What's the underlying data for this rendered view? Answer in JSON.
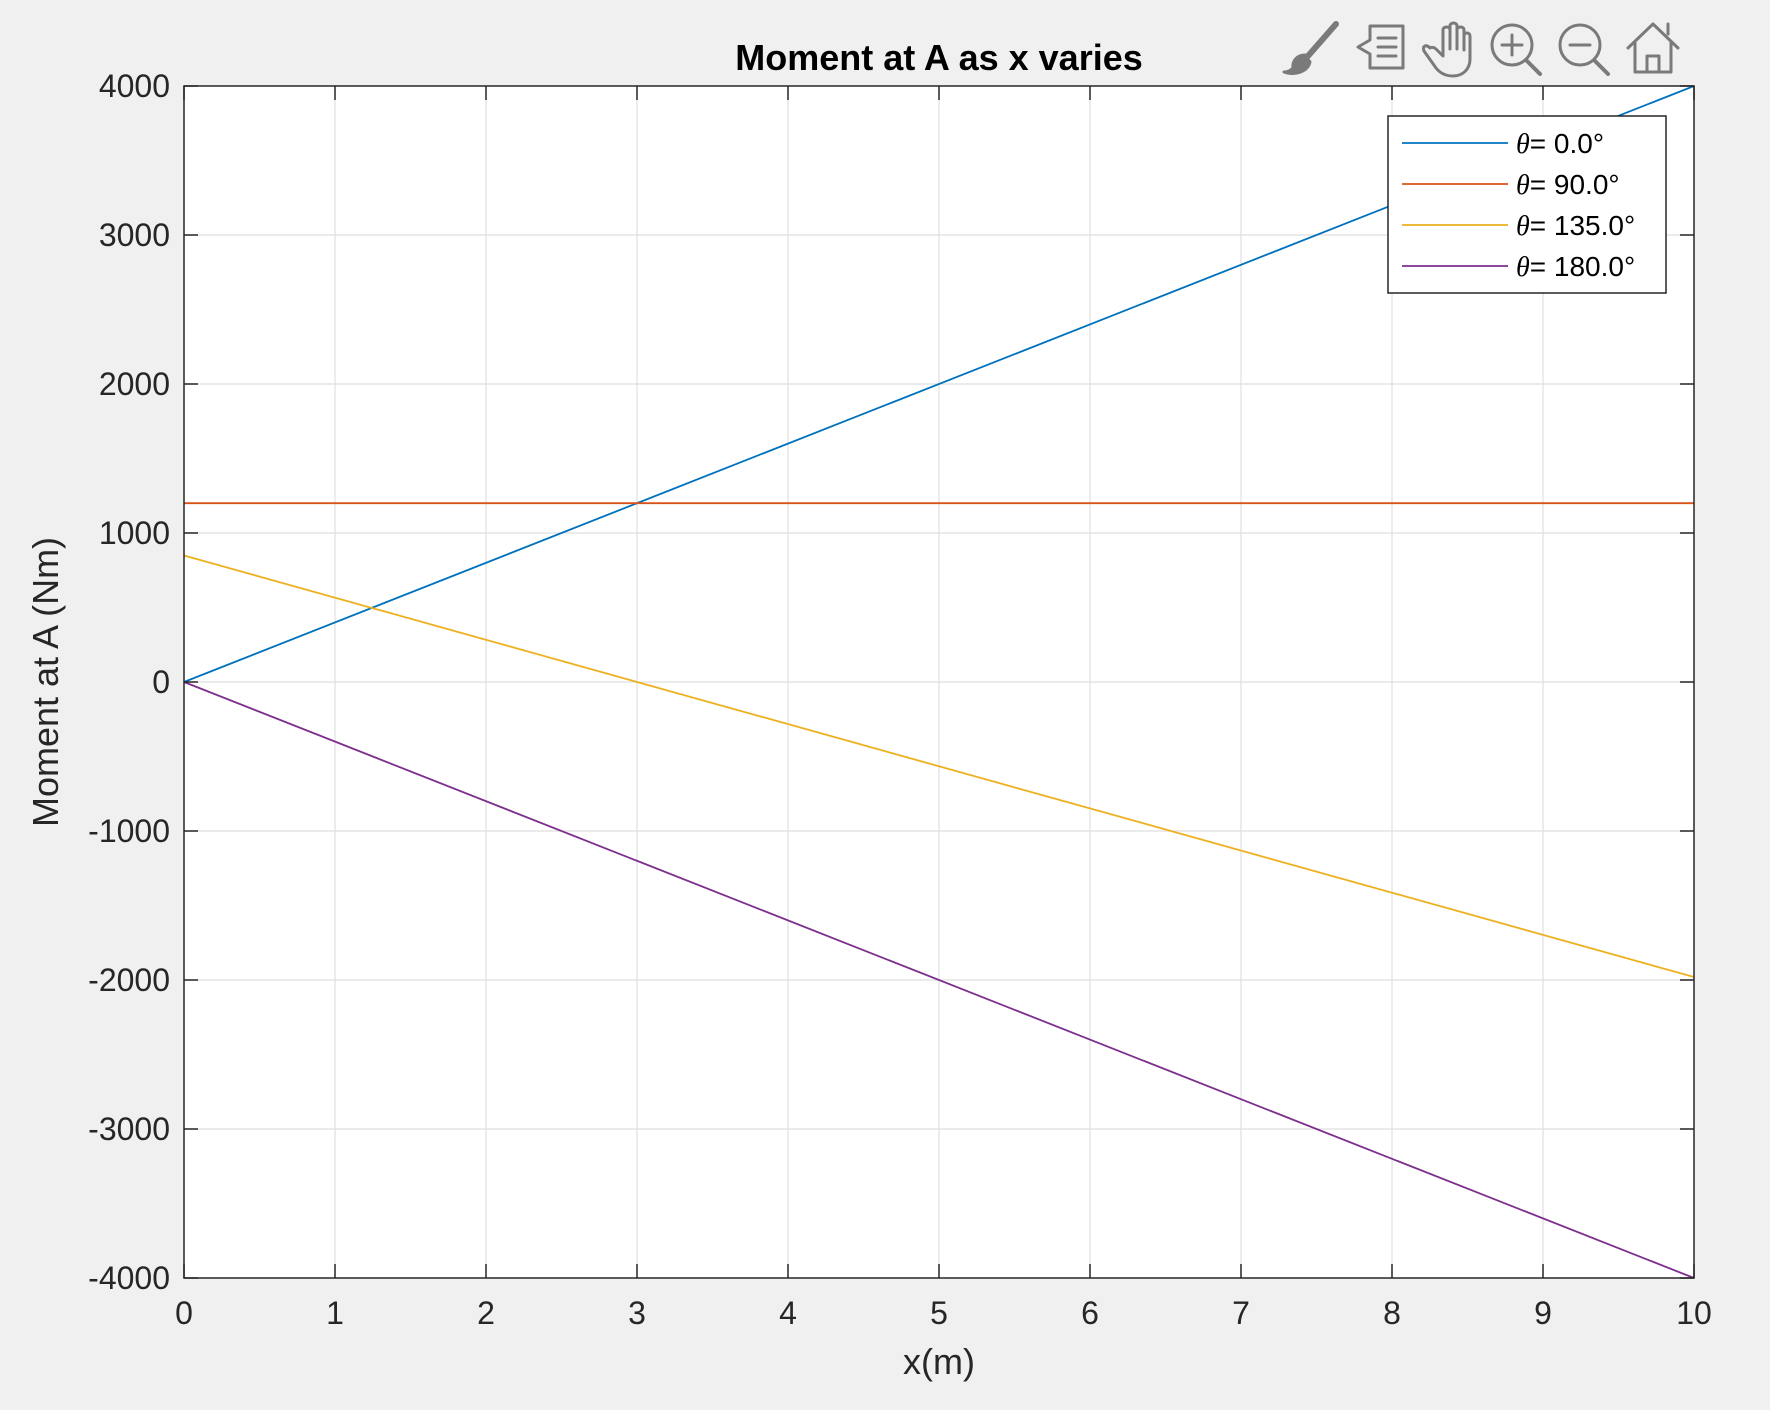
{
  "toolbar": {
    "icons": [
      "brush-icon",
      "data-tips-icon",
      "pan-hand-icon",
      "zoom-in-icon",
      "zoom-out-icon",
      "home-icon"
    ]
  },
  "colors": {
    "background": "#f0f0f0",
    "axes_background": "#ffffff",
    "grid": "#dfdfdf",
    "axis": "#262626",
    "toolbar_icon": "#7a7a7a"
  },
  "chart_data": {
    "type": "line",
    "title": "Moment at A as x varies",
    "xlabel": "x(m)",
    "ylabel": "Moment at A (Nm)",
    "xlim": [
      0,
      10
    ],
    "ylim": [
      -4000,
      4000
    ],
    "xticks": [
      0,
      1,
      2,
      3,
      4,
      5,
      6,
      7,
      8,
      9,
      10
    ],
    "yticks": [
      -4000,
      -3000,
      -2000,
      -1000,
      0,
      1000,
      2000,
      3000,
      4000
    ],
    "grid": true,
    "legend_position": "top-right",
    "x": [
      0,
      10
    ],
    "series": [
      {
        "name": "θ= 0.0°",
        "symbol": "θ",
        "rest": "= 0.0°",
        "color": "#0072bd",
        "values": [
          0,
          4000
        ]
      },
      {
        "name": "θ= 90.0°",
        "symbol": "θ",
        "rest": "= 90.0°",
        "color": "#d95319",
        "values": [
          1200,
          1200
        ]
      },
      {
        "name": "θ= 135.0°",
        "symbol": "θ",
        "rest": "= 135.0°",
        "color": "#edb120",
        "values": [
          849,
          -1980
        ]
      },
      {
        "name": "θ= 180.0°",
        "symbol": "θ",
        "rest": "= 180.0°",
        "color": "#7e2f8e",
        "values": [
          0,
          -4000
        ]
      }
    ]
  }
}
